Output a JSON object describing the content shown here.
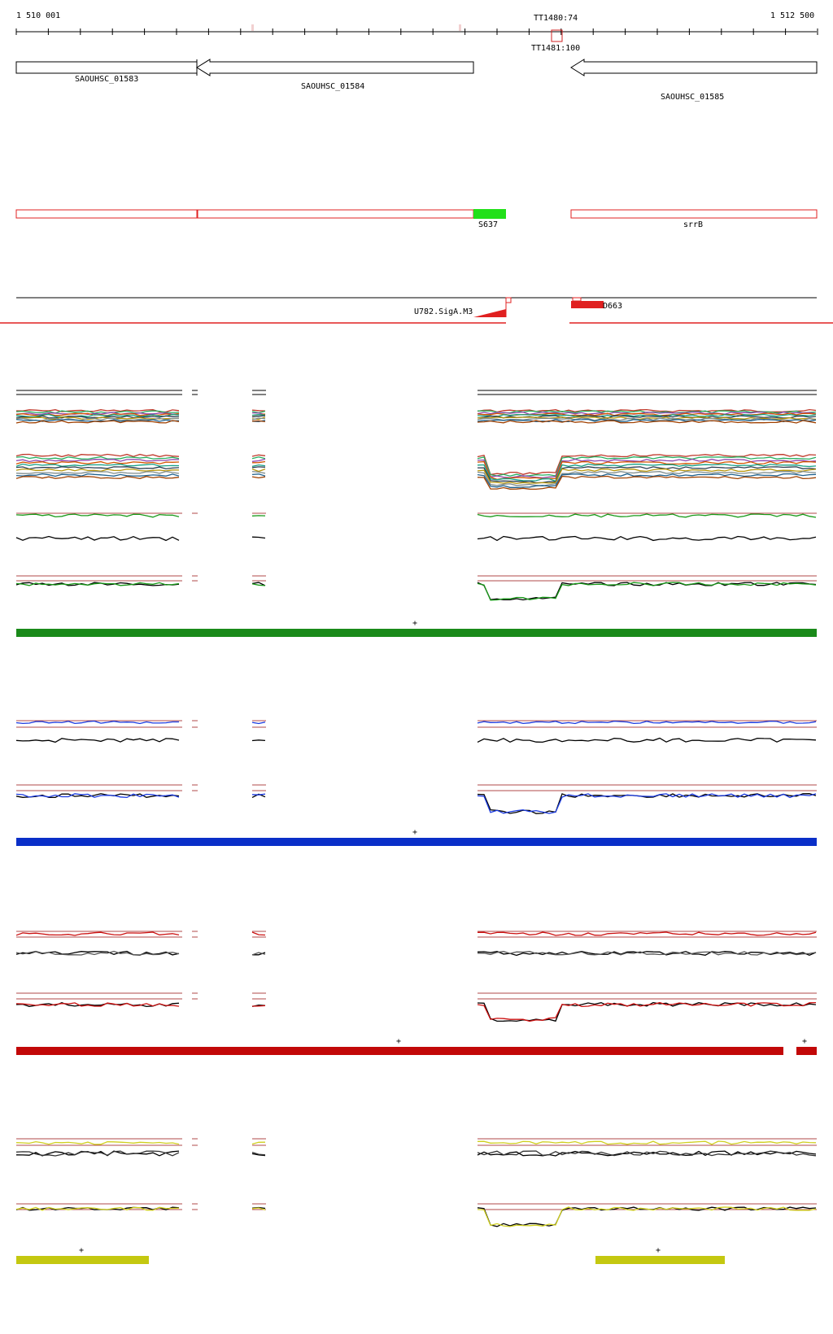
{
  "ruler": {
    "start_label": "1 510 001",
    "end_label": "1 512 500",
    "terminators": [
      "TT1480:74",
      "TT1481:100"
    ]
  },
  "genes": [
    {
      "label": "SAOUHSC_01583",
      "strand": "minus"
    },
    {
      "label": "SAOUHSC_01584",
      "strand": "minus"
    },
    {
      "label": "SAOUHSC_01585",
      "strand": "minus"
    }
  ],
  "features": [
    {
      "label": "S637",
      "color": "#22e01a"
    },
    {
      "label": "srrB",
      "color": "#e02020"
    }
  ],
  "transcription": [
    {
      "label": "U782.SigA.M3"
    },
    {
      "label": "D663"
    }
  ],
  "condition_bars": [
    {
      "color": "#1a8a1a",
      "marker": "+"
    },
    {
      "color": "#0a2fc8",
      "marker": "+"
    },
    {
      "color": "#c20808",
      "markers": [
        "+",
        "+"
      ]
    },
    {
      "color": "#c4c810",
      "markers": [
        "+",
        "+"
      ]
    }
  ],
  "colors": {
    "ref_line": "#b04a4a",
    "green": "#1a9a1a",
    "blue": "#1a3ae0",
    "red": "#cc1010",
    "yellow": "#d0d020"
  }
}
